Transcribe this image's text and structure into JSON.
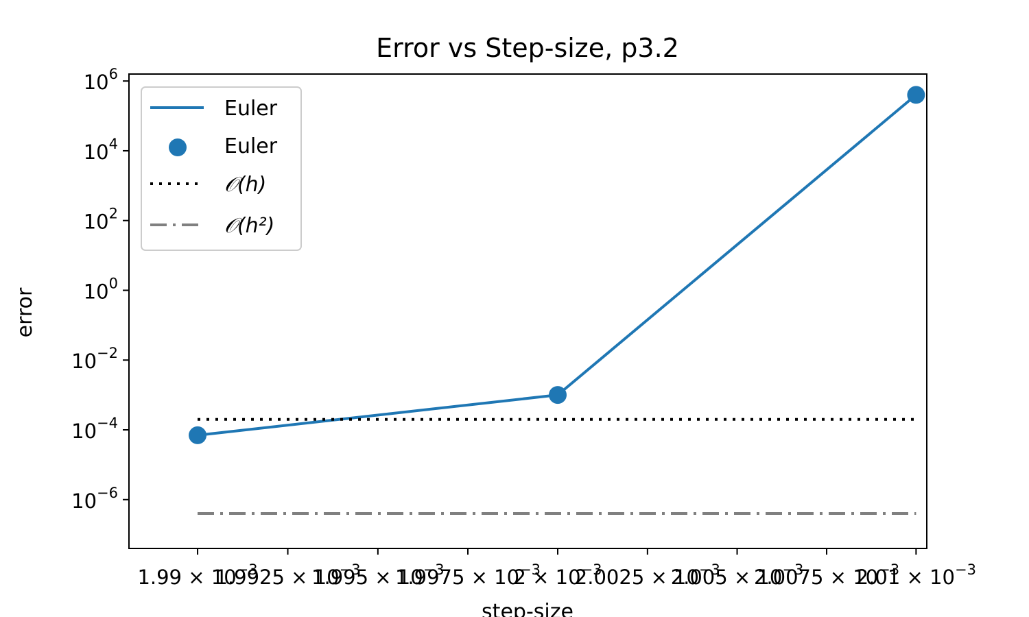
{
  "chart_data": {
    "type": "line",
    "title": "Error vs Step-size, p3.2",
    "xlabel": "step-size",
    "ylabel": "error",
    "x_scale": "log",
    "y_scale": "log",
    "xlim": [
      0.0019881,
      0.0020103
    ],
    "ylim_exponent": [
      -7.4,
      6.2
    ],
    "grid": false,
    "legend_position": "top-left",
    "x_ticks": [
      {
        "value": 0.00199,
        "text": "1.99 × 10",
        "exp": "−3"
      },
      {
        "value": 0.0019925,
        "text": "1.9925 × 10",
        "exp": "−3"
      },
      {
        "value": 0.001995,
        "text": "1.995 × 10",
        "exp": "−3"
      },
      {
        "value": 0.0019975,
        "text": "1.9975 × 10",
        "exp": "−3"
      },
      {
        "value": 0.002,
        "text": "2 × 10",
        "exp": "−3"
      },
      {
        "value": 0.0020025,
        "text": "2.0025 × 10",
        "exp": "−3"
      },
      {
        "value": 0.002005,
        "text": "2.005 × 10",
        "exp": "−3"
      },
      {
        "value": 0.0020075,
        "text": "2.0075 × 10",
        "exp": "−3"
      },
      {
        "value": 0.00201,
        "text": "2.01 × 10",
        "exp": "−3"
      }
    ],
    "y_ticks": [
      {
        "exponent": 6,
        "base": "10",
        "exp": "6"
      },
      {
        "exponent": 4,
        "base": "10",
        "exp": "4"
      },
      {
        "exponent": 2,
        "base": "10",
        "exp": "2"
      },
      {
        "exponent": 0,
        "base": "10",
        "exp": "0"
      },
      {
        "exponent": -2,
        "base": "10",
        "exp": "−2"
      },
      {
        "exponent": -4,
        "base": "10",
        "exp": "−4"
      },
      {
        "exponent": -6,
        "base": "10",
        "exp": "−6"
      }
    ],
    "series": [
      {
        "name": "Euler",
        "style": "line",
        "color": "#1f77b4",
        "x": [
          0.00199,
          0.002,
          0.00201
        ],
        "y": [
          7e-05,
          0.001,
          400000
        ]
      },
      {
        "name": "Euler",
        "style": "markers",
        "color": "#1f77b4",
        "x": [
          0.00199,
          0.002,
          0.00201
        ],
        "y": [
          7e-05,
          0.001,
          400000
        ]
      },
      {
        "name": "𝒪(h)",
        "style": "dotted",
        "color": "#000000",
        "x": [
          0.00199,
          0.00201
        ],
        "y": [
          0.0002,
          0.0002
        ]
      },
      {
        "name": "𝒪(h²)",
        "style": "dashdot",
        "color": "#808080",
        "x": [
          0.00199,
          0.00201
        ],
        "y": [
          4e-07,
          4e-07
        ]
      }
    ]
  }
}
